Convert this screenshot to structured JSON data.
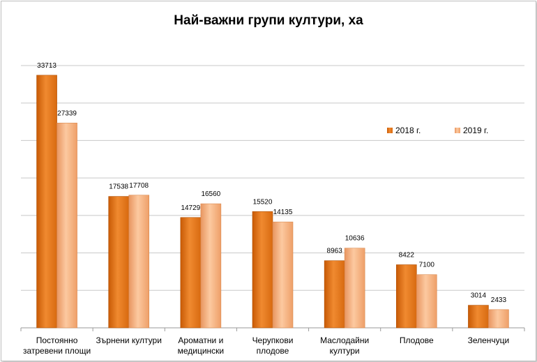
{
  "chart_data": {
    "type": "bar",
    "title": "Най-важни групи култури, ха",
    "categories": [
      [
        "Постоянно",
        "затревени площи"
      ],
      [
        "Зърнени култури"
      ],
      [
        "Ароматни и",
        "медицински"
      ],
      [
        "Черупкови",
        "плодове"
      ],
      [
        "Маслодайни",
        "култури"
      ],
      [
        "Плодове"
      ],
      [
        "Зеленчуци"
      ]
    ],
    "series": [
      {
        "name": "2018 г.",
        "values": [
          33713,
          17538,
          14729,
          15520,
          8963,
          8422,
          3014
        ],
        "color": "#e8771a"
      },
      {
        "name": "2019 г.",
        "values": [
          27339,
          17708,
          16560,
          14135,
          10636,
          7100,
          2433
        ],
        "color": "#f6b07c"
      }
    ],
    "ylim": [
      0,
      35000
    ],
    "grid": true,
    "legend": "right"
  }
}
